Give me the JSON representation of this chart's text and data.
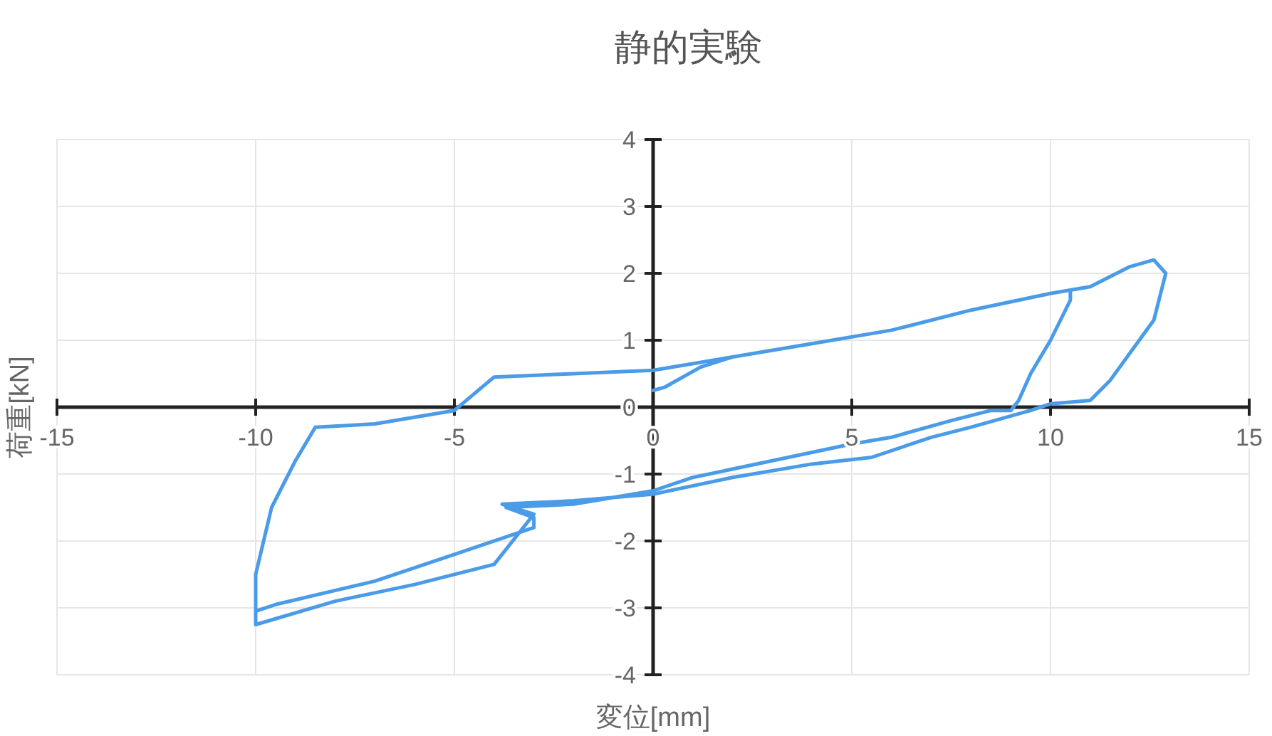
{
  "chart_data": {
    "type": "line",
    "title": "静的実験",
    "xlabel": "変位[mm]",
    "ylabel": "荷重[kN]",
    "xlim": [
      -15,
      15
    ],
    "ylim": [
      -4,
      4
    ],
    "xticks": [
      -15,
      -10,
      -5,
      0,
      5,
      10,
      15
    ],
    "yticks": [
      -4,
      -3,
      -2,
      -1,
      0,
      1,
      2,
      3,
      4
    ],
    "grid": true,
    "marker": "none",
    "line_style": "solid",
    "x": [
      0,
      0.3,
      1.2,
      2,
      4,
      6,
      8,
      10,
      10.5,
      10.5,
      10,
      9.5,
      9.2,
      9,
      8.5,
      7.5,
      6,
      5,
      3,
      1,
      0,
      -2,
      -3.7,
      -3,
      -3,
      -5,
      -7,
      -9.5,
      -10,
      -10,
      -9.6,
      -9,
      -8.5,
      -7,
      -5,
      -4.5,
      -4,
      -2,
      0,
      2,
      4,
      6,
      8,
      10,
      10.5,
      11,
      12,
      12.6,
      12.9,
      12.6,
      11.5,
      11,
      10,
      9.5,
      8,
      7,
      5.5,
      4,
      2,
      0,
      -2,
      -3.8,
      -3,
      -4,
      -6,
      -8,
      -10,
      -10
    ],
    "series": [
      {
        "color": "#4a9be8",
        "values": [
          0.25,
          0.3,
          0.6,
          0.75,
          0.95,
          1.15,
          1.45,
          1.7,
          1.75,
          1.6,
          1.0,
          0.5,
          0.1,
          -0.05,
          -0.05,
          -0.2,
          -0.45,
          -0.55,
          -0.8,
          -1.05,
          -1.25,
          -1.45,
          -1.5,
          -1.65,
          -1.8,
          -2.2,
          -2.6,
          -2.95,
          -3.05,
          -2.5,
          -1.5,
          -0.8,
          -0.3,
          -0.25,
          -0.05,
          0.2,
          0.45,
          0.5,
          0.55,
          0.75,
          0.95,
          1.15,
          1.45,
          1.7,
          1.75,
          1.8,
          2.1,
          2.2,
          2.0,
          1.3,
          0.4,
          0.1,
          0.05,
          -0.05,
          -0.3,
          -0.45,
          -0.75,
          -0.85,
          -1.05,
          -1.3,
          -1.4,
          -1.45,
          -1.6,
          -2.35,
          -2.65,
          -2.9,
          -3.25,
          -2.8
        ]
      }
    ]
  }
}
